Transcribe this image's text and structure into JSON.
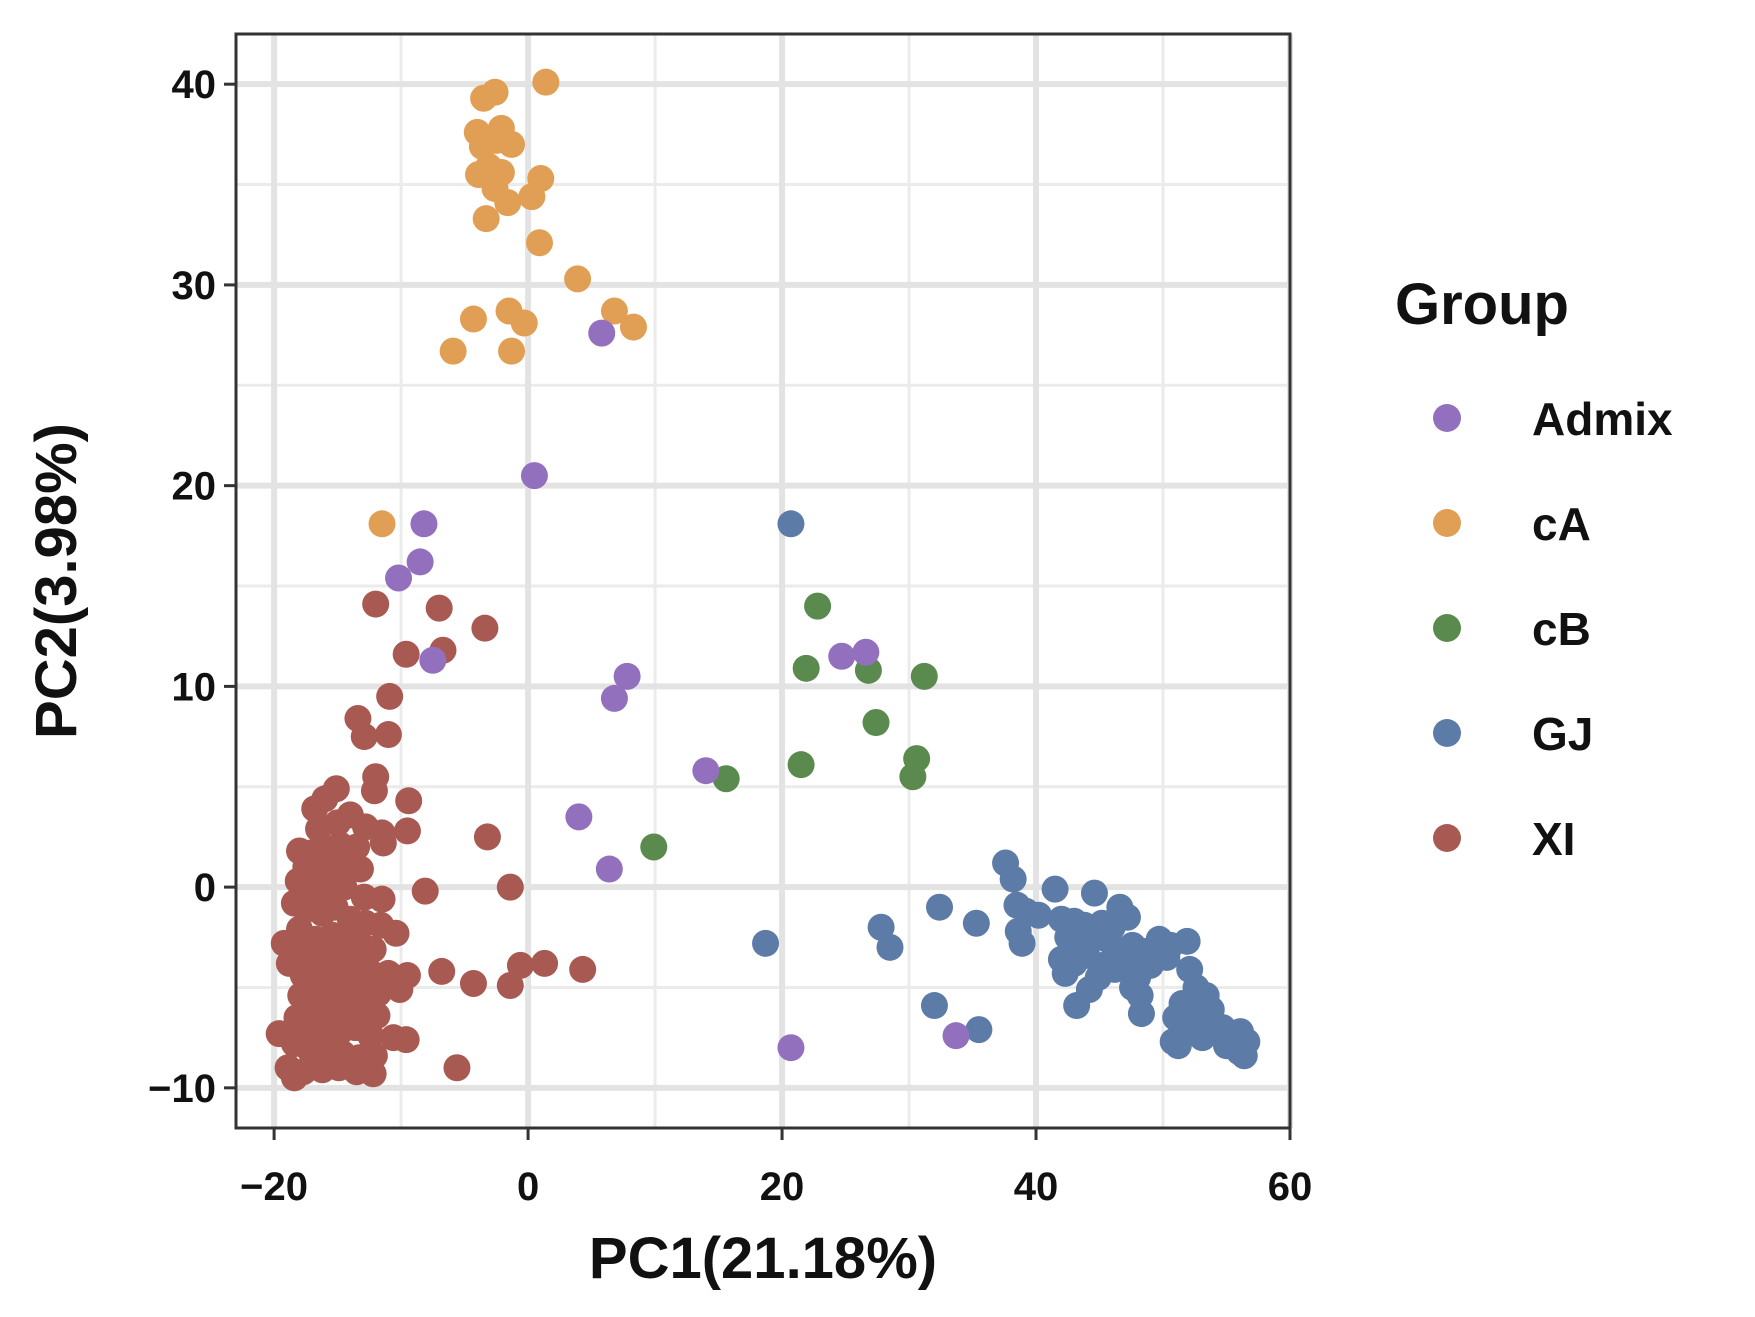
{
  "chart_data": {
    "type": "scatter",
    "xlabel": "PC1(21.18%)",
    "ylabel": "PC2(3.98%)",
    "xlim": [
      -23,
      60
    ],
    "ylim": [
      -12,
      42.5
    ],
    "x_ticks": [
      -20,
      0,
      20,
      40,
      60
    ],
    "x_tick_labels": [
      "−20",
      "0",
      "20",
      "40",
      "60"
    ],
    "y_ticks": [
      -10,
      0,
      10,
      20,
      30,
      40
    ],
    "y_tick_labels": [
      "−10",
      "0",
      "10",
      "20",
      "30",
      "40"
    ],
    "grid": true,
    "legend": {
      "title": "Group",
      "position": "right"
    },
    "series": [
      {
        "name": "Admix",
        "color": "#9370BE",
        "points": [
          [
            5.8,
            27.6
          ],
          [
            0.5,
            20.5
          ],
          [
            -8.2,
            18.1
          ],
          [
            -8.5,
            16.2
          ],
          [
            -10.2,
            15.4
          ],
          [
            -7.5,
            11.3
          ],
          [
            7.8,
            10.5
          ],
          [
            6.8,
            9.4
          ],
          [
            24.7,
            11.5
          ],
          [
            26.6,
            11.7
          ],
          [
            14.0,
            5.8
          ],
          [
            4.0,
            3.5
          ],
          [
            6.4,
            0.9
          ],
          [
            20.7,
            -8.0
          ],
          [
            33.7,
            -7.4
          ]
        ]
      },
      {
        "name": "cA",
        "color": "#E19F55",
        "points": [
          [
            1.4,
            40.1
          ],
          [
            -2.6,
            39.6
          ],
          [
            -3.5,
            39.3
          ],
          [
            -4.0,
            37.6
          ],
          [
            -2.1,
            37.8
          ],
          [
            -3.6,
            36.9
          ],
          [
            -2.5,
            37.2
          ],
          [
            -1.3,
            37.0
          ],
          [
            -3.9,
            35.5
          ],
          [
            -2.1,
            35.6
          ],
          [
            -3.1,
            35.9
          ],
          [
            -2.6,
            34.8
          ],
          [
            1.0,
            35.3
          ],
          [
            0.3,
            34.4
          ],
          [
            -1.6,
            34.1
          ],
          [
            -3.3,
            33.3
          ],
          [
            0.9,
            32.1
          ],
          [
            3.9,
            30.3
          ],
          [
            -1.5,
            28.7
          ],
          [
            -4.3,
            28.3
          ],
          [
            -0.3,
            28.1
          ],
          [
            6.8,
            28.7
          ],
          [
            8.3,
            27.9
          ],
          [
            -5.9,
            26.7
          ],
          [
            -1.3,
            26.7
          ],
          [
            -11.5,
            18.1
          ]
        ]
      },
      {
        "name": "cB",
        "color": "#5B8A4F",
        "points": [
          [
            22.8,
            14.0
          ],
          [
            21.9,
            10.9
          ],
          [
            26.8,
            10.8
          ],
          [
            31.2,
            10.5
          ],
          [
            27.4,
            8.2
          ],
          [
            30.6,
            6.4
          ],
          [
            21.5,
            6.1
          ],
          [
            30.3,
            5.5
          ],
          [
            15.6,
            5.4
          ],
          [
            9.9,
            2.0
          ]
        ]
      },
      {
        "name": "GJ",
        "color": "#5C7BA6",
        "points": [
          [
            20.7,
            18.1
          ],
          [
            37.6,
            1.2
          ],
          [
            38.2,
            0.4
          ],
          [
            41.5,
            -0.1
          ],
          [
            44.6,
            -0.3
          ],
          [
            38.5,
            -0.9
          ],
          [
            39.2,
            -1.2
          ],
          [
            40.2,
            -1.4
          ],
          [
            42.0,
            -1.6
          ],
          [
            43.0,
            -1.7
          ],
          [
            32.4,
            -1.0
          ],
          [
            43.8,
            -1.9
          ],
          [
            45.2,
            -1.8
          ],
          [
            46.0,
            -2.0
          ],
          [
            46.6,
            -1.0
          ],
          [
            47.2,
            -1.5
          ],
          [
            35.3,
            -1.8
          ],
          [
            27.8,
            -2.0
          ],
          [
            38.6,
            -2.2
          ],
          [
            42.5,
            -2.5
          ],
          [
            43.5,
            -2.8
          ],
          [
            44.8,
            -2.3
          ],
          [
            45.6,
            -2.6
          ],
          [
            46.4,
            -3.1
          ],
          [
            47.6,
            -2.9
          ],
          [
            48.5,
            -3.2
          ],
          [
            49.7,
            -2.6
          ],
          [
            50.6,
            -2.9
          ],
          [
            51.9,
            -2.7
          ],
          [
            38.9,
            -2.8
          ],
          [
            18.7,
            -2.8
          ],
          [
            28.5,
            -3.0
          ],
          [
            42.0,
            -3.6
          ],
          [
            43.0,
            -3.8
          ],
          [
            44.0,
            -3.4
          ],
          [
            45.3,
            -3.9
          ],
          [
            46.2,
            -4.1
          ],
          [
            47.0,
            -3.7
          ],
          [
            48.0,
            -4.5
          ],
          [
            49.0,
            -3.9
          ],
          [
            50.3,
            -3.5
          ],
          [
            52.1,
            -4.1
          ],
          [
            42.3,
            -4.3
          ],
          [
            44.9,
            -4.5
          ],
          [
            47.6,
            -5.0
          ],
          [
            48.2,
            -5.4
          ],
          [
            52.6,
            -5.0
          ],
          [
            53.4,
            -5.4
          ],
          [
            44.2,
            -5.1
          ],
          [
            51.5,
            -5.8
          ],
          [
            53.0,
            -5.9
          ],
          [
            53.8,
            -6.1
          ],
          [
            43.2,
            -5.9
          ],
          [
            32.0,
            -5.9
          ],
          [
            48.3,
            -6.3
          ],
          [
            51.0,
            -6.5
          ],
          [
            52.4,
            -6.8
          ],
          [
            53.6,
            -6.7
          ],
          [
            54.4,
            -7.2
          ],
          [
            35.5,
            -7.1
          ],
          [
            51.6,
            -7.4
          ],
          [
            53.1,
            -7.5
          ],
          [
            54.7,
            -7.0
          ],
          [
            56.1,
            -7.2
          ],
          [
            56.6,
            -7.7
          ],
          [
            51.2,
            -7.9
          ],
          [
            55.0,
            -7.9
          ],
          [
            56.0,
            -8.2
          ],
          [
            56.4,
            -8.4
          ],
          [
            50.8,
            -7.7
          ]
        ]
      },
      {
        "name": "XI",
        "color": "#A85A52",
        "points": [
          [
            -12.0,
            14.1
          ],
          [
            -7.0,
            13.9
          ],
          [
            -3.4,
            12.9
          ],
          [
            -9.6,
            11.6
          ],
          [
            -6.7,
            11.8
          ],
          [
            -10.9,
            9.5
          ],
          [
            -13.4,
            8.4
          ],
          [
            -11.0,
            7.6
          ],
          [
            -12.9,
            7.5
          ],
          [
            -12.0,
            5.5
          ],
          [
            -15.1,
            4.9
          ],
          [
            -16.0,
            4.4
          ],
          [
            -16.8,
            3.9
          ],
          [
            -12.1,
            4.8
          ],
          [
            -9.4,
            4.3
          ],
          [
            -14.0,
            3.6
          ],
          [
            -15.0,
            3.2
          ],
          [
            -16.5,
            2.9
          ],
          [
            -12.8,
            3.0
          ],
          [
            -11.5,
            2.7
          ],
          [
            -9.5,
            2.8
          ],
          [
            -3.2,
            2.5
          ],
          [
            -18.0,
            1.8
          ],
          [
            -17.1,
            1.7
          ],
          [
            -16.0,
            1.9
          ],
          [
            -14.8,
            2.1
          ],
          [
            -13.5,
            2.0
          ],
          [
            -11.4,
            2.2
          ],
          [
            -17.5,
            1.0
          ],
          [
            -16.5,
            0.6
          ],
          [
            -15.5,
            0.9
          ],
          [
            -14.0,
            1.2
          ],
          [
            -13.2,
            0.9
          ],
          [
            -18.1,
            0.3
          ],
          [
            -17.0,
            -0.1
          ],
          [
            -15.8,
            -0.3
          ],
          [
            -14.5,
            0.0
          ],
          [
            -12.9,
            -0.5
          ],
          [
            -11.5,
            -0.6
          ],
          [
            -8.1,
            -0.2
          ],
          [
            -1.4,
            -0.0
          ],
          [
            -18.4,
            -0.8
          ],
          [
            -17.4,
            -1.1
          ],
          [
            -16.2,
            -1.3
          ],
          [
            -15.2,
            -1.0
          ],
          [
            -14.0,
            -1.6
          ],
          [
            -12.8,
            -1.8
          ],
          [
            -11.6,
            -1.9
          ],
          [
            -10.4,
            -2.3
          ],
          [
            -18.0,
            -2.1
          ],
          [
            -16.7,
            -2.6
          ],
          [
            -15.4,
            -2.4
          ],
          [
            -14.4,
            -2.9
          ],
          [
            -13.4,
            -2.7
          ],
          [
            -12.2,
            -3.1
          ],
          [
            -19.2,
            -2.8
          ],
          [
            -17.9,
            -3.3
          ],
          [
            -16.8,
            -3.6
          ],
          [
            -15.7,
            -3.4
          ],
          [
            -14.9,
            -3.9
          ],
          [
            -13.7,
            -3.7
          ],
          [
            -12.5,
            -4.2
          ],
          [
            -11.0,
            -4.3
          ],
          [
            -9.5,
            -4.4
          ],
          [
            -6.8,
            -4.2
          ],
          [
            -4.3,
            -4.8
          ],
          [
            -0.6,
            -3.9
          ],
          [
            1.3,
            -3.8
          ],
          [
            4.3,
            -4.1
          ],
          [
            -1.4,
            -4.9
          ],
          [
            -18.8,
            -3.8
          ],
          [
            -17.7,
            -4.4
          ],
          [
            -16.5,
            -4.7
          ],
          [
            -15.3,
            -4.5
          ],
          [
            -14.1,
            -5.0
          ],
          [
            -13.0,
            -4.8
          ],
          [
            -11.8,
            -5.3
          ],
          [
            -10.1,
            -5.1
          ],
          [
            -17.9,
            -5.4
          ],
          [
            -16.7,
            -5.9
          ],
          [
            -15.5,
            -5.7
          ],
          [
            -14.3,
            -6.2
          ],
          [
            -13.2,
            -6.0
          ],
          [
            -11.9,
            -6.4
          ],
          [
            -18.2,
            -6.5
          ],
          [
            -17.1,
            -6.9
          ],
          [
            -15.9,
            -6.7
          ],
          [
            -14.8,
            -7.2
          ],
          [
            -13.6,
            -7.0
          ],
          [
            -12.4,
            -7.4
          ],
          [
            -10.6,
            -7.5
          ],
          [
            -9.6,
            -7.6
          ],
          [
            -19.6,
            -7.3
          ],
          [
            -18.4,
            -7.8
          ],
          [
            -17.2,
            -8.1
          ],
          [
            -16.0,
            -7.9
          ],
          [
            -14.6,
            -8.3
          ],
          [
            -13.3,
            -8.5
          ],
          [
            -12.1,
            -8.4
          ],
          [
            -18.9,
            -9.0
          ],
          [
            -17.7,
            -9.2
          ],
          [
            -16.2,
            -9.1
          ],
          [
            -14.9,
            -9.0
          ],
          [
            -13.5,
            -9.2
          ],
          [
            -12.2,
            -9.3
          ],
          [
            -18.4,
            -9.5
          ],
          [
            -5.6,
            -9.0
          ]
        ]
      }
    ]
  }
}
